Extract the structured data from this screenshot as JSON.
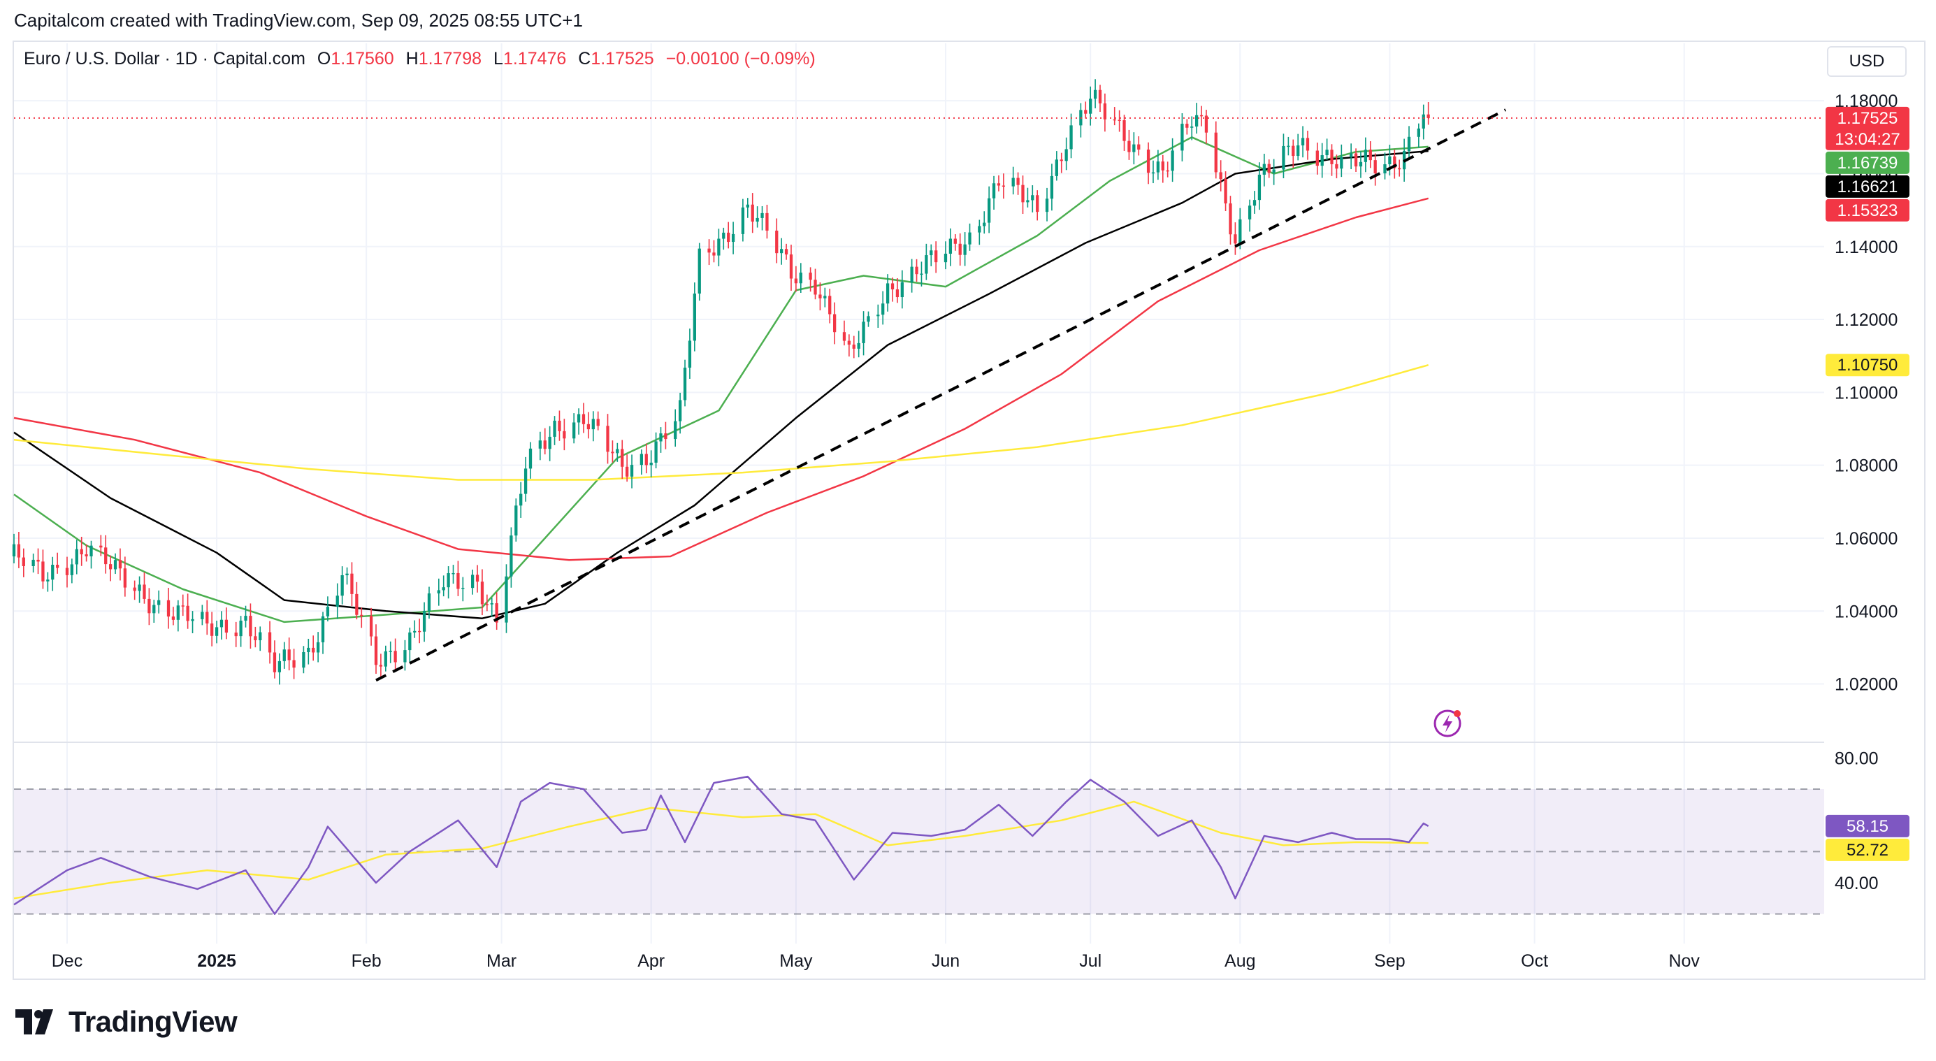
{
  "credit": "Capitalcom created with TradingView.com, Sep 09, 2025 08:55 UTC+1",
  "legend": {
    "symbol": "Euro / U.S. Dollar · 1D · Capital.com",
    "o_label": "O",
    "o_value": "1.17560",
    "h_label": "H",
    "h_value": "1.17798",
    "l_label": "L",
    "l_value": "1.17476",
    "c_label": "C",
    "c_value": "1.17525",
    "change": "−0.00100 (−0.09%)"
  },
  "currency": "USD",
  "brand": "TradingView",
  "price_badges": [
    {
      "text": "1.17525",
      "sub": "13:04:27",
      "value": 1.17525,
      "color": "#f23645",
      "text_color": "#ffffff"
    },
    {
      "text": "1.16739",
      "value": 1.16739,
      "color": "#4caf50",
      "text_color": "#ffffff"
    },
    {
      "text": "1.16621",
      "value": 1.16621,
      "color": "#000000",
      "text_color": "#ffffff"
    },
    {
      "text": "1.15323",
      "value": 1.15323,
      "color": "#f23645",
      "text_color": "#ffffff"
    },
    {
      "text": "1.10750",
      "value": 1.1075,
      "color": "#ffeb3b",
      "text_color": "#131722"
    }
  ],
  "rsi_badges": [
    {
      "text": "58.15",
      "value": 58.15,
      "color": "#7e57c2",
      "text_color": "#ffffff"
    },
    {
      "text": "52.72",
      "value": 52.72,
      "color": "#ffeb3b",
      "text_color": "#131722"
    }
  ],
  "chart_data": {
    "type": "candlestick",
    "symbol": "EURUSD",
    "interval": "1D",
    "y_ticks": [
      "1.18000",
      "1.16000",
      "1.14000",
      "1.12000",
      "1.10000",
      "1.08000",
      "1.06000",
      "1.04000",
      "1.02000"
    ],
    "y_tick_values": [
      1.18,
      1.16,
      1.14,
      1.12,
      1.1,
      1.08,
      1.06,
      1.04,
      1.02
    ],
    "ylim": [
      1.004,
      1.19
    ],
    "x_ticks": [
      {
        "label": "Dec",
        "date": "2024-12-01",
        "bold": false
      },
      {
        "label": "2025",
        "date": "2025-01-01",
        "bold": true
      },
      {
        "label": "Feb",
        "date": "2025-02-01",
        "bold": false
      },
      {
        "label": "Mar",
        "date": "2025-03-01",
        "bold": false
      },
      {
        "label": "Apr",
        "date": "2025-04-01",
        "bold": false
      },
      {
        "label": "May",
        "date": "2025-05-01",
        "bold": false
      },
      {
        "label": "Jun",
        "date": "2025-06-01",
        "bold": false
      },
      {
        "label": "Jul",
        "date": "2025-07-01",
        "bold": false
      },
      {
        "label": "Aug",
        "date": "2025-08-01",
        "bold": false
      },
      {
        "label": "Sep",
        "date": "2025-09-01",
        "bold": false
      },
      {
        "label": "Oct",
        "date": "2025-10-01",
        "bold": false
      },
      {
        "label": "Nov",
        "date": "2025-11-01",
        "bold": false
      }
    ],
    "xlim": [
      "2024-11-20",
      "2025-11-30"
    ],
    "last_price": 1.17525,
    "up_color": "#089981",
    "down_color": "#f23645",
    "close_path": [
      [
        "2024-11-20",
        1.055
      ],
      [
        "2024-11-26",
        1.049
      ],
      [
        "2024-12-05",
        1.058
      ],
      [
        "2024-12-12",
        1.049
      ],
      [
        "2024-12-20",
        1.042
      ],
      [
        "2024-12-30",
        1.035
      ],
      [
        "2025-01-07",
        1.038
      ],
      [
        "2025-01-13",
        1.024
      ],
      [
        "2025-01-20",
        1.029
      ],
      [
        "2025-01-27",
        1.05
      ],
      [
        "2025-02-03",
        1.026
      ],
      [
        "2025-02-10",
        1.033
      ],
      [
        "2025-02-17",
        1.047
      ],
      [
        "2025-02-24",
        1.049
      ],
      [
        "2025-02-28",
        1.038
      ],
      [
        "2025-03-06",
        1.079
      ],
      [
        "2025-03-12",
        1.091
      ],
      [
        "2025-03-18",
        1.093
      ],
      [
        "2025-03-26",
        1.079
      ],
      [
        "2025-03-31",
        1.083
      ],
      [
        "2025-04-07",
        1.094
      ],
      [
        "2025-04-11",
        1.136
      ],
      [
        "2025-04-21",
        1.151
      ],
      [
        "2025-04-30",
        1.133
      ],
      [
        "2025-05-05",
        1.131
      ],
      [
        "2025-05-12",
        1.109
      ],
      [
        "2025-05-20",
        1.129
      ],
      [
        "2025-05-30",
        1.136
      ],
      [
        "2025-06-06",
        1.143
      ],
      [
        "2025-06-12",
        1.158
      ],
      [
        "2025-06-20",
        1.15
      ],
      [
        "2025-06-26",
        1.17
      ],
      [
        "2025-07-01",
        1.18
      ],
      [
        "2025-07-07",
        1.172
      ],
      [
        "2025-07-16",
        1.16
      ],
      [
        "2025-07-22",
        1.174
      ],
      [
        "2025-07-25",
        1.174
      ],
      [
        "2025-07-31",
        1.142
      ],
      [
        "2025-08-05",
        1.157
      ],
      [
        "2025-08-13",
        1.17
      ],
      [
        "2025-08-22",
        1.161
      ],
      [
        "2025-08-27",
        1.164
      ],
      [
        "2025-09-02",
        1.164
      ],
      [
        "2025-09-04",
        1.165
      ],
      [
        "2025-09-08",
        1.176
      ],
      [
        "2025-09-09",
        1.17525
      ]
    ],
    "moving_averages": [
      {
        "color": "#4caf50",
        "last": 1.16739,
        "points": [
          [
            "2024-11-20",
            1.072
          ],
          [
            "2024-12-05",
            1.058
          ],
          [
            "2024-12-25",
            1.046
          ],
          [
            "2025-01-15",
            1.037
          ],
          [
            "2025-02-05",
            1.039
          ],
          [
            "2025-02-25",
            1.041
          ],
          [
            "2025-03-10",
            1.06
          ],
          [
            "2025-03-25",
            1.082
          ],
          [
            "2025-04-15",
            1.095
          ],
          [
            "2025-05-01",
            1.128
          ],
          [
            "2025-05-15",
            1.132
          ],
          [
            "2025-06-01",
            1.129
          ],
          [
            "2025-06-20",
            1.143
          ],
          [
            "2025-07-05",
            1.158
          ],
          [
            "2025-07-22",
            1.17
          ],
          [
            "2025-08-08",
            1.16
          ],
          [
            "2025-08-25",
            1.166
          ],
          [
            "2025-09-09",
            1.16739
          ]
        ]
      },
      {
        "color": "#000000",
        "last": 1.16621,
        "points": [
          [
            "2024-11-20",
            1.089
          ],
          [
            "2024-12-10",
            1.071
          ],
          [
            "2025-01-01",
            1.056
          ],
          [
            "2025-01-15",
            1.043
          ],
          [
            "2025-02-05",
            1.04
          ],
          [
            "2025-02-25",
            1.038
          ],
          [
            "2025-03-10",
            1.042
          ],
          [
            "2025-03-25",
            1.056
          ],
          [
            "2025-04-10",
            1.069
          ],
          [
            "2025-05-01",
            1.093
          ],
          [
            "2025-05-20",
            1.113
          ],
          [
            "2025-06-10",
            1.127
          ],
          [
            "2025-06-30",
            1.141
          ],
          [
            "2025-07-20",
            1.152
          ],
          [
            "2025-07-31",
            1.16
          ],
          [
            "2025-08-20",
            1.164
          ],
          [
            "2025-09-09",
            1.16621
          ]
        ]
      },
      {
        "color": "#f23645",
        "last": 1.15323,
        "points": [
          [
            "2024-11-20",
            1.093
          ],
          [
            "2024-12-15",
            1.087
          ],
          [
            "2025-01-10",
            1.078
          ],
          [
            "2025-02-01",
            1.066
          ],
          [
            "2025-02-20",
            1.057
          ],
          [
            "2025-03-15",
            1.054
          ],
          [
            "2025-04-05",
            1.055
          ],
          [
            "2025-04-25",
            1.067
          ],
          [
            "2025-05-15",
            1.077
          ],
          [
            "2025-06-05",
            1.09
          ],
          [
            "2025-06-25",
            1.105
          ],
          [
            "2025-07-15",
            1.125
          ],
          [
            "2025-08-05",
            1.139
          ],
          [
            "2025-08-25",
            1.148
          ],
          [
            "2025-09-09",
            1.15323
          ]
        ]
      },
      {
        "color": "#ffeb3b",
        "last": 1.1075,
        "points": [
          [
            "2024-11-20",
            1.087
          ],
          [
            "2024-12-20",
            1.083
          ],
          [
            "2025-01-20",
            1.079
          ],
          [
            "2025-02-20",
            1.076
          ],
          [
            "2025-03-20",
            1.076
          ],
          [
            "2025-04-20",
            1.078
          ],
          [
            "2025-05-20",
            1.081
          ],
          [
            "2025-06-20",
            1.085
          ],
          [
            "2025-07-20",
            1.091
          ],
          [
            "2025-08-20",
            1.1
          ],
          [
            "2025-09-09",
            1.1075
          ]
        ]
      }
    ],
    "trendline": {
      "color": "#000000",
      "style": "dashed",
      "from": [
        "2025-02-03",
        1.021
      ],
      "to": [
        "2025-09-25",
        1.1775
      ]
    },
    "rsi": {
      "y_ticks": [
        "80.00",
        "40.00"
      ],
      "y_tick_values": [
        80,
        40
      ],
      "levels": [
        70,
        50,
        30
      ],
      "ylim": [
        25,
        85
      ],
      "line_color": "#7e57c2",
      "ma_color": "#ffeb3b",
      "rsi_last": 58.15,
      "ma_last": 52.72,
      "rsi_points": [
        [
          "2024-11-20",
          33
        ],
        [
          "2024-12-01",
          44
        ],
        [
          "2024-12-08",
          48
        ],
        [
          "2024-12-18",
          42
        ],
        [
          "2024-12-28",
          38
        ],
        [
          "2025-01-07",
          44
        ],
        [
          "2025-01-13",
          30
        ],
        [
          "2025-01-20",
          45
        ],
        [
          "2025-01-24",
          58
        ],
        [
          "2025-02-03",
          40
        ],
        [
          "2025-02-10",
          50
        ],
        [
          "2025-02-20",
          60
        ],
        [
          "2025-02-28",
          45
        ],
        [
          "2025-03-05",
          66
        ],
        [
          "2025-03-11",
          72
        ],
        [
          "2025-03-18",
          70
        ],
        [
          "2025-03-26",
          56
        ],
        [
          "2025-03-31",
          57
        ],
        [
          "2025-04-03",
          68
        ],
        [
          "2025-04-08",
          53
        ],
        [
          "2025-04-14",
          72
        ],
        [
          "2025-04-21",
          74
        ],
        [
          "2025-04-28",
          62
        ],
        [
          "2025-05-05",
          60
        ],
        [
          "2025-05-13",
          41
        ],
        [
          "2025-05-21",
          56
        ],
        [
          "2025-05-29",
          55
        ],
        [
          "2025-06-05",
          57
        ],
        [
          "2025-06-12",
          65
        ],
        [
          "2025-06-19",
          55
        ],
        [
          "2025-06-26",
          66
        ],
        [
          "2025-07-01",
          73
        ],
        [
          "2025-07-08",
          66
        ],
        [
          "2025-07-15",
          55
        ],
        [
          "2025-07-22",
          60
        ],
        [
          "2025-07-28",
          45
        ],
        [
          "2025-07-31",
          35
        ],
        [
          "2025-08-06",
          55
        ],
        [
          "2025-08-13",
          53
        ],
        [
          "2025-08-20",
          56
        ],
        [
          "2025-08-25",
          54
        ],
        [
          "2025-09-01",
          54
        ],
        [
          "2025-09-05",
          53
        ],
        [
          "2025-09-08",
          59
        ],
        [
          "2025-09-09",
          58.15
        ]
      ],
      "ma_points": [
        [
          "2024-11-20",
          35
        ],
        [
          "2024-12-10",
          40
        ],
        [
          "2024-12-30",
          44
        ],
        [
          "2025-01-20",
          41
        ],
        [
          "2025-02-05",
          49
        ],
        [
          "2025-02-25",
          51
        ],
        [
          "2025-03-15",
          58
        ],
        [
          "2025-04-01",
          64
        ],
        [
          "2025-04-20",
          61
        ],
        [
          "2025-05-05",
          62
        ],
        [
          "2025-05-20",
          52
        ],
        [
          "2025-06-05",
          55
        ],
        [
          "2025-06-25",
          60
        ],
        [
          "2025-07-10",
          66
        ],
        [
          "2025-07-28",
          56
        ],
        [
          "2025-08-10",
          52
        ],
        [
          "2025-08-25",
          53
        ],
        [
          "2025-09-09",
          52.72
        ]
      ]
    }
  }
}
